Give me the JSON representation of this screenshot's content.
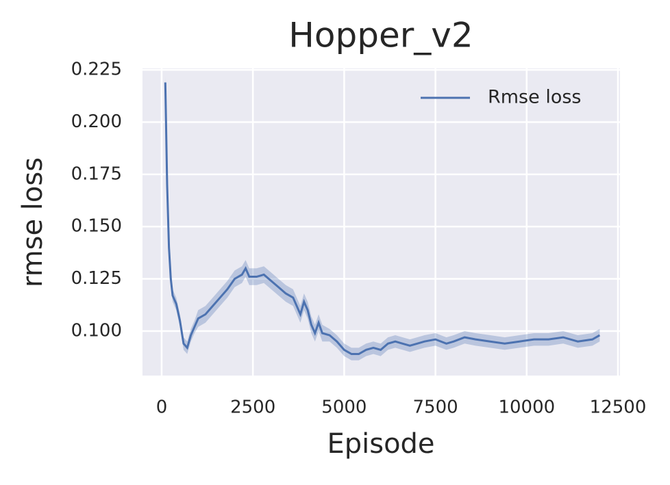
{
  "chart_data": {
    "type": "line",
    "title": "Hopper_v2",
    "xlabel": "Episode",
    "ylabel": "rmse loss",
    "x": [
      100,
      150,
      200,
      250,
      300,
      400,
      500,
      600,
      700,
      800,
      900,
      1000,
      1200,
      1400,
      1600,
      1800,
      2000,
      2200,
      2300,
      2400,
      2600,
      2800,
      3000,
      3200,
      3400,
      3600,
      3800,
      3900,
      4000,
      4100,
      4200,
      4300,
      4400,
      4600,
      4800,
      5000,
      5200,
      5400,
      5600,
      5800,
      6000,
      6200,
      6400,
      6600,
      6800,
      7000,
      7200,
      7500,
      7800,
      8000,
      8300,
      8600,
      9000,
      9400,
      9800,
      10200,
      10600,
      11000,
      11400,
      11800,
      12000
    ],
    "series": [
      {
        "name": "Rmse loss",
        "color": "#4c72b0",
        "values": [
          0.219,
          0.17,
          0.14,
          0.125,
          0.117,
          0.113,
          0.105,
          0.094,
          0.092,
          0.098,
          0.102,
          0.106,
          0.108,
          0.112,
          0.116,
          0.12,
          0.125,
          0.127,
          0.13,
          0.126,
          0.126,
          0.127,
          0.124,
          0.121,
          0.118,
          0.116,
          0.108,
          0.114,
          0.11,
          0.103,
          0.099,
          0.104,
          0.099,
          0.098,
          0.095,
          0.091,
          0.089,
          0.089,
          0.091,
          0.092,
          0.091,
          0.094,
          0.095,
          0.094,
          0.093,
          0.094,
          0.095,
          0.096,
          0.094,
          0.095,
          0.097,
          0.096,
          0.095,
          0.094,
          0.095,
          0.096,
          0.096,
          0.097,
          0.095,
          0.096,
          0.098
        ],
        "lower": [
          0.216,
          0.167,
          0.137,
          0.122,
          0.114,
          0.11,
          0.102,
          0.091,
          0.089,
          0.095,
          0.099,
          0.102,
          0.104,
          0.108,
          0.112,
          0.116,
          0.121,
          0.123,
          0.126,
          0.122,
          0.122,
          0.123,
          0.12,
          0.117,
          0.114,
          0.112,
          0.104,
          0.11,
          0.106,
          0.099,
          0.095,
          0.1,
          0.095,
          0.095,
          0.092,
          0.088,
          0.086,
          0.086,
          0.088,
          0.089,
          0.088,
          0.091,
          0.092,
          0.091,
          0.09,
          0.091,
          0.092,
          0.093,
          0.091,
          0.092,
          0.094,
          0.093,
          0.092,
          0.091,
          0.092,
          0.093,
          0.093,
          0.094,
          0.092,
          0.093,
          0.095
        ],
        "upper": [
          0.222,
          0.173,
          0.143,
          0.128,
          0.12,
          0.116,
          0.108,
          0.097,
          0.095,
          0.101,
          0.105,
          0.11,
          0.112,
          0.116,
          0.12,
          0.124,
          0.129,
          0.131,
          0.134,
          0.13,
          0.13,
          0.131,
          0.128,
          0.125,
          0.122,
          0.12,
          0.112,
          0.118,
          0.114,
          0.107,
          0.103,
          0.108,
          0.103,
          0.101,
          0.098,
          0.094,
          0.092,
          0.092,
          0.094,
          0.095,
          0.094,
          0.097,
          0.098,
          0.097,
          0.096,
          0.097,
          0.098,
          0.099,
          0.097,
          0.098,
          0.1,
          0.099,
          0.098,
          0.097,
          0.098,
          0.099,
          0.099,
          0.1,
          0.098,
          0.099,
          0.101
        ]
      }
    ],
    "xlim": [
      -525,
      12556
    ],
    "ylim": [
      0.0787,
      0.2257
    ],
    "xticks": [
      0,
      2500,
      5000,
      7500,
      10000,
      12500
    ],
    "yticks": [
      {
        "value": 0.1,
        "label": "0.100"
      },
      0.125,
      {
        "value": 0.15,
        "label": "0.150"
      },
      0.175,
      {
        "value": 0.2,
        "label": "0.200"
      },
      0.225
    ],
    "grid": true,
    "legend": "upper right"
  }
}
